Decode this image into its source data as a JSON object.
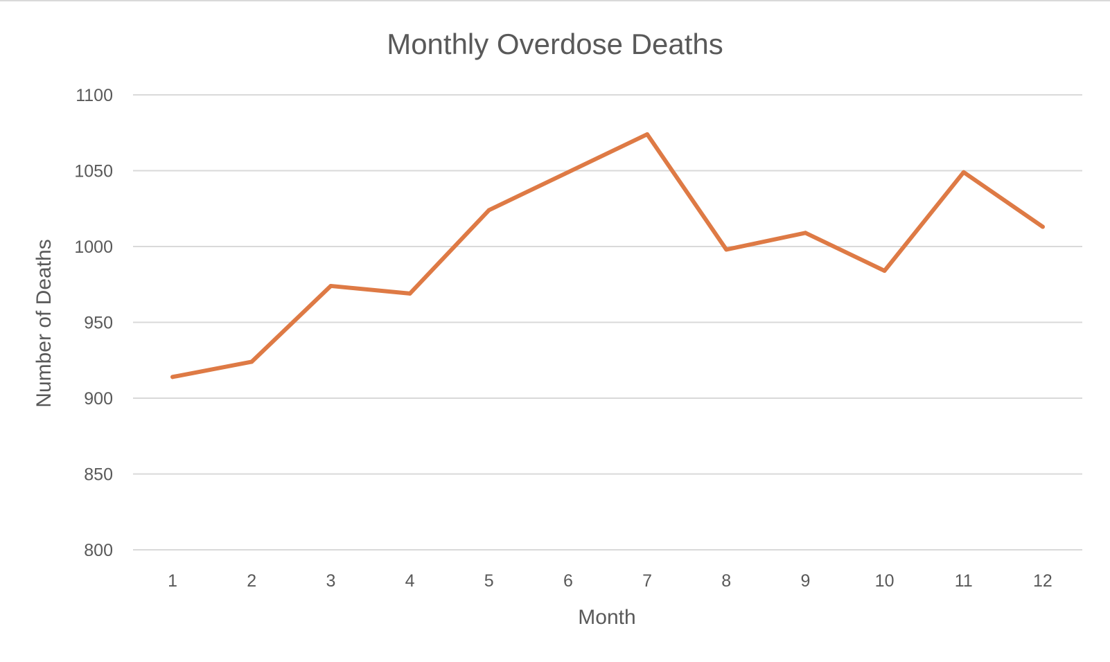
{
  "chart_data": {
    "type": "line",
    "title": "Monthly Overdose Deaths",
    "xlabel": "Month",
    "ylabel": "Number of Deaths",
    "categories": [
      "1",
      "2",
      "3",
      "4",
      "5",
      "6",
      "7",
      "8",
      "9",
      "10",
      "11",
      "12"
    ],
    "series": [
      {
        "values": [
          914,
          924,
          974,
          969,
          1024,
          1049,
          1074,
          998,
          1009,
          984,
          1049,
          1013
        ],
        "color": "#de7a45"
      }
    ],
    "ylim": [
      800,
      1100
    ],
    "yticks": [
      "800",
      "850",
      "900",
      "950",
      "1000",
      "1050",
      "1100"
    ],
    "grid": true,
    "legend": "none"
  }
}
